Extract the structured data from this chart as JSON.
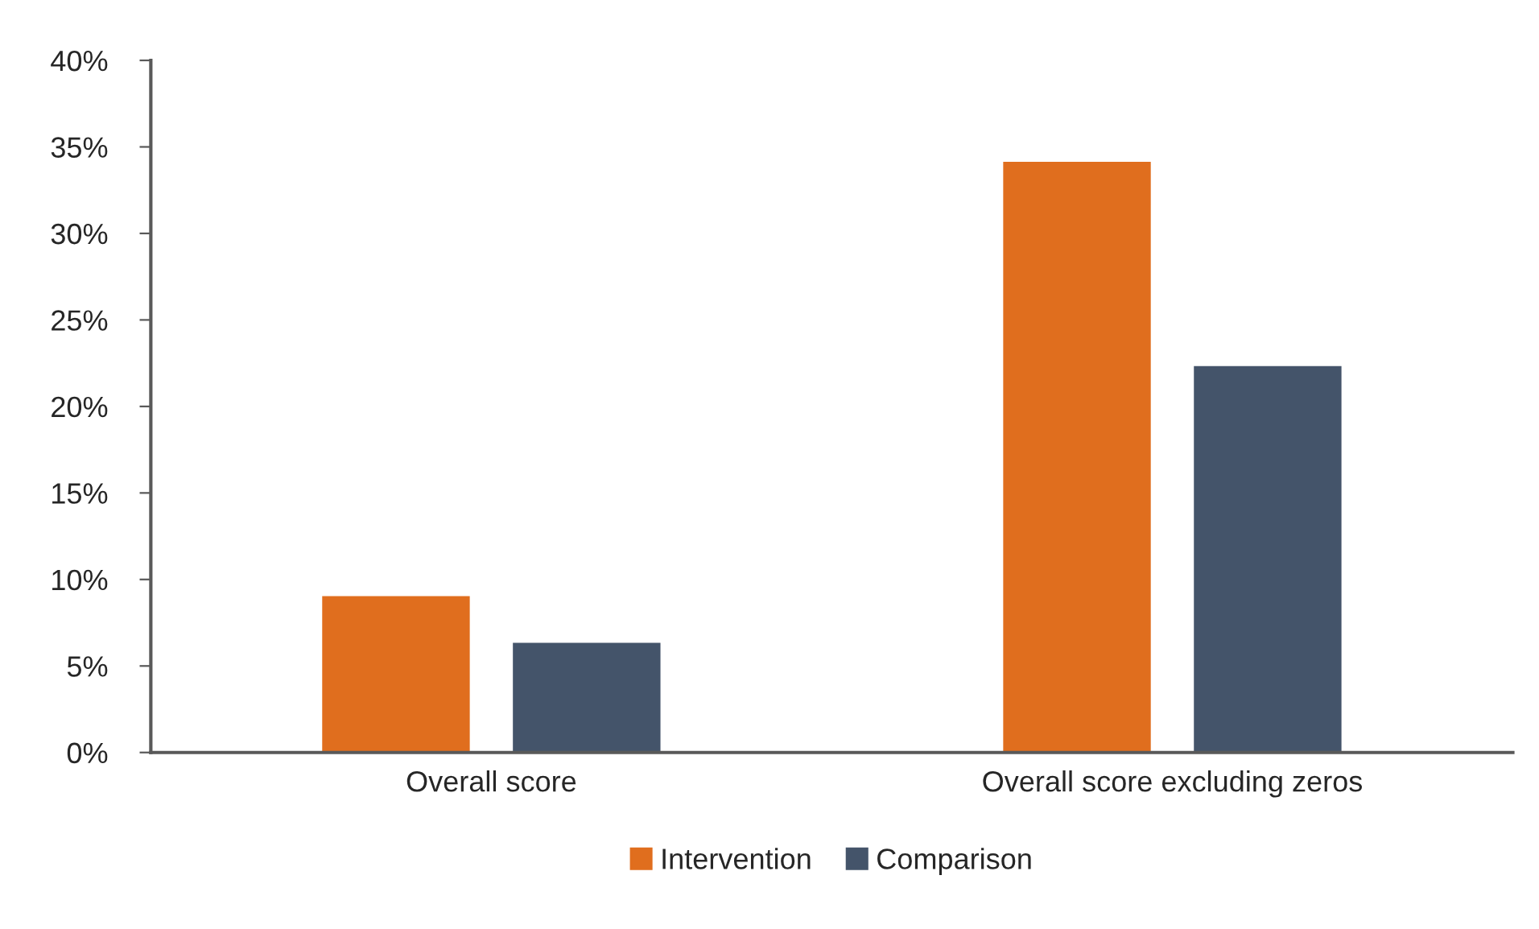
{
  "chart_data": {
    "type": "bar",
    "categories": [
      "Overall score",
      "Overall score excluding zeros"
    ],
    "series": [
      {
        "name": "Intervention",
        "color": "#e06e1e",
        "values": [
          9.1,
          34.2
        ]
      },
      {
        "name": "Comparison",
        "color": "#44546a",
        "values": [
          6.4,
          22.4
        ]
      }
    ],
    "ylim": [
      0,
      40
    ],
    "yticks": [
      {
        "value": 0,
        "label": "0%"
      },
      {
        "value": 5,
        "label": "5%"
      },
      {
        "value": 10,
        "label": "10%"
      },
      {
        "value": 15,
        "label": "15%"
      },
      {
        "value": 20,
        "label": "20%"
      },
      {
        "value": 25,
        "label": "25%"
      },
      {
        "value": 30,
        "label": "30%"
      },
      {
        "value": 35,
        "label": "35%"
      },
      {
        "value": 40,
        "label": "40%"
      }
    ],
    "grid": false,
    "legend": "bottom"
  }
}
